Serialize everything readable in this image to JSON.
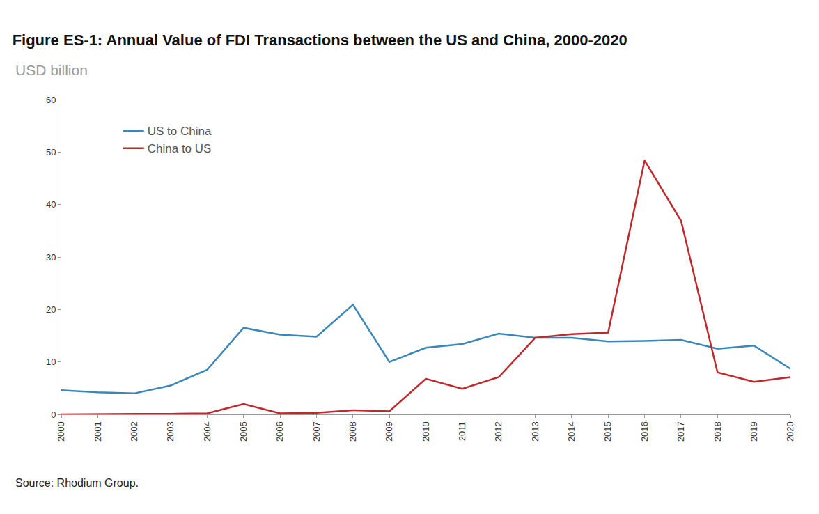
{
  "chart_data": {
    "type": "line",
    "title": "Figure ES-1: Annual Value of FDI Transactions between the US and China, 2000-2020",
    "subtitle": "USD billion",
    "annotations": [
      "Source: Rhodium Group."
    ],
    "categories": [
      "2000",
      "2001",
      "2002",
      "2003",
      "2004",
      "2005",
      "2006",
      "2007",
      "2008",
      "2009",
      "2010",
      "2011",
      "2012",
      "2013",
      "2014",
      "2015",
      "2016",
      "2017",
      "2018",
      "2019",
      "2020"
    ],
    "series": [
      {
        "name": "US to China",
        "color": "#3a87b8",
        "values": [
          4.6,
          4.2,
          4.0,
          5.5,
          8.5,
          16.5,
          15.2,
          14.8,
          20.9,
          10.0,
          12.7,
          13.4,
          15.4,
          14.6,
          14.6,
          13.9,
          14.0,
          14.2,
          12.5,
          13.1,
          8.7
        ]
      },
      {
        "name": "China to US",
        "color": "#c0292b",
        "values": [
          0,
          0.1,
          0.1,
          0.1,
          0.2,
          2.0,
          0.2,
          0.3,
          0.8,
          0.6,
          6.8,
          4.9,
          7.1,
          14.6,
          15.3,
          15.6,
          48.4,
          36.9,
          8.0,
          6.2,
          7.1
        ]
      }
    ],
    "ylim": [
      0,
      60
    ],
    "yticks": [
      0,
      10,
      20,
      30,
      40,
      50,
      60
    ],
    "grid": false,
    "legend": "top left"
  }
}
